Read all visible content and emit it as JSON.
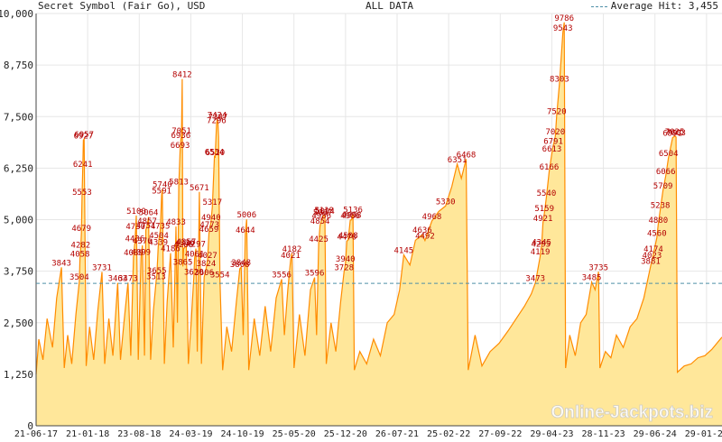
{
  "header": {
    "title": "Secret Symbol (Fair Go), USD",
    "range": "ALL DATA",
    "average_label": "Average Hit: 3,455"
  },
  "watermark": "Online-Jackpots.biz",
  "colors": {
    "line": "#ff8c00",
    "fill": "#ffe79a",
    "grid": "#e6e6e6",
    "labels": "#b30000",
    "average": "#4f90a8"
  },
  "chart_data": {
    "type": "area",
    "title": "Secret Symbol (Fair Go), USD",
    "xlabel": "",
    "ylabel": "",
    "ylim": [
      0,
      10000
    ],
    "yticks": [
      "0",
      "1,250",
      "2,500",
      "3,750",
      "5,000",
      "6,250",
      "7,500",
      "8,750",
      "10,000"
    ],
    "yticks_values": [
      0,
      1250,
      2500,
      3750,
      5000,
      6250,
      7500,
      8750,
      10000
    ],
    "xticks": [
      "21-06-17",
      "21-01-18",
      "23-08-18",
      "24-03-19",
      "24-10-19",
      "25-05-20",
      "25-12-20",
      "26-07-21",
      "25-02-22",
      "27-09-22",
      "29-04-23",
      "28-11-23",
      "29-06-24",
      "29-01-25"
    ],
    "average": 3455,
    "grid": true,
    "hits": [
      {
        "x": 0.037,
        "y": 3843,
        "label": "3843"
      },
      {
        "x": 0.063,
        "y": 3504,
        "label": "3504"
      },
      {
        "x": 0.064,
        "y": 4058,
        "label": "4058"
      },
      {
        "x": 0.065,
        "y": 4282,
        "label": "4282"
      },
      {
        "x": 0.066,
        "y": 4679,
        "label": "4679"
      },
      {
        "x": 0.067,
        "y": 5553,
        "label": "5553"
      },
      {
        "x": 0.068,
        "y": 6241,
        "label": "6241"
      },
      {
        "x": 0.069,
        "y": 6927,
        "label": "6927"
      },
      {
        "x": 0.07,
        "y": 6957,
        "label": "6957"
      },
      {
        "x": 0.096,
        "y": 3731,
        "label": "3731"
      },
      {
        "x": 0.119,
        "y": 3463,
        "label": "3463"
      },
      {
        "x": 0.134,
        "y": 3473,
        "label": "3473"
      },
      {
        "x": 0.142,
        "y": 4089,
        "label": "4089"
      },
      {
        "x": 0.144,
        "y": 4436,
        "label": "4436"
      },
      {
        "x": 0.145,
        "y": 4730,
        "label": "4730"
      },
      {
        "x": 0.146,
        "y": 5100,
        "label": "5100"
      },
      {
        "x": 0.153,
        "y": 4099,
        "label": "4099"
      },
      {
        "x": 0.155,
        "y": 4376,
        "label": "4376"
      },
      {
        "x": 0.16,
        "y": 4751,
        "label": "4751"
      },
      {
        "x": 0.162,
        "y": 4857,
        "label": "4857"
      },
      {
        "x": 0.164,
        "y": 5064,
        "label": "5064"
      },
      {
        "x": 0.175,
        "y": 3513,
        "label": "3513"
      },
      {
        "x": 0.176,
        "y": 3655,
        "label": "3655"
      },
      {
        "x": 0.178,
        "y": 4339,
        "label": "4339"
      },
      {
        "x": 0.179,
        "y": 4504,
        "label": "4504"
      },
      {
        "x": 0.181,
        "y": 4735,
        "label": "4735"
      },
      {
        "x": 0.183,
        "y": 5591,
        "label": "5591"
      },
      {
        "x": 0.184,
        "y": 5740,
        "label": "5740"
      },
      {
        "x": 0.196,
        "y": 4186,
        "label": "4186"
      },
      {
        "x": 0.204,
        "y": 4833,
        "label": "4833"
      },
      {
        "x": 0.208,
        "y": 5813,
        "label": "5813"
      },
      {
        "x": 0.21,
        "y": 6693,
        "label": "6693"
      },
      {
        "x": 0.211,
        "y": 6936,
        "label": "6936"
      },
      {
        "x": 0.212,
        "y": 7051,
        "label": "7051"
      },
      {
        "x": 0.213,
        "y": 8412,
        "label": "8412"
      },
      {
        "x": 0.214,
        "y": 3865,
        "label": "3865"
      },
      {
        "x": 0.215,
        "y": 4286,
        "label": "4286"
      },
      {
        "x": 0.217,
        "y": 4336,
        "label": "4336"
      },
      {
        "x": 0.219,
        "y": 4357,
        "label": "4357"
      },
      {
        "x": 0.23,
        "y": 3620,
        "label": "3620"
      },
      {
        "x": 0.231,
        "y": 4061,
        "label": "4061"
      },
      {
        "x": 0.233,
        "y": 4297,
        "label": "4297"
      },
      {
        "x": 0.238,
        "y": 5671,
        "label": "5671"
      },
      {
        "x": 0.245,
        "y": 3606,
        "label": "3606"
      },
      {
        "x": 0.248,
        "y": 3824,
        "label": "3824"
      },
      {
        "x": 0.25,
        "y": 4027,
        "label": "4027"
      },
      {
        "x": 0.252,
        "y": 4659,
        "label": "4659"
      },
      {
        "x": 0.253,
        "y": 4773,
        "label": "4773"
      },
      {
        "x": 0.255,
        "y": 4940,
        "label": "4940"
      },
      {
        "x": 0.257,
        "y": 5317,
        "label": "5317"
      },
      {
        "x": 0.26,
        "y": 6534,
        "label": "6534"
      },
      {
        "x": 0.261,
        "y": 6520,
        "label": "6520"
      },
      {
        "x": 0.263,
        "y": 7296,
        "label": "7296"
      },
      {
        "x": 0.264,
        "y": 7424,
        "label": "7424"
      },
      {
        "x": 0.265,
        "y": 7387,
        "label": "7387"
      },
      {
        "x": 0.268,
        "y": 3554,
        "label": "3554"
      },
      {
        "x": 0.297,
        "y": 3808,
        "label": "3808"
      },
      {
        "x": 0.299,
        "y": 3848,
        "label": "3848"
      },
      {
        "x": 0.305,
        "y": 4644,
        "label": "4644"
      },
      {
        "x": 0.307,
        "y": 5006,
        "label": "5006"
      },
      {
        "x": 0.358,
        "y": 3556,
        "label": "3556"
      },
      {
        "x": 0.371,
        "y": 4021,
        "label": "4021"
      },
      {
        "x": 0.373,
        "y": 4182,
        "label": "4182"
      },
      {
        "x": 0.406,
        "y": 3596,
        "label": "3596"
      },
      {
        "x": 0.412,
        "y": 4425,
        "label": "4425"
      },
      {
        "x": 0.414,
        "y": 4854,
        "label": "4854"
      },
      {
        "x": 0.416,
        "y": 4986,
        "label": "4986"
      },
      {
        "x": 0.418,
        "y": 5067,
        "label": "5067"
      },
      {
        "x": 0.42,
        "y": 5119,
        "label": "5119"
      },
      {
        "x": 0.421,
        "y": 5094,
        "label": "5094"
      },
      {
        "x": 0.449,
        "y": 3728,
        "label": "3728"
      },
      {
        "x": 0.451,
        "y": 3940,
        "label": "3940"
      },
      {
        "x": 0.453,
        "y": 4476,
        "label": "4476"
      },
      {
        "x": 0.455,
        "y": 4508,
        "label": "4508"
      },
      {
        "x": 0.458,
        "y": 4986,
        "label": "4986"
      },
      {
        "x": 0.46,
        "y": 4998,
        "label": "4998"
      },
      {
        "x": 0.462,
        "y": 5136,
        "label": "5136"
      },
      {
        "x": 0.536,
        "y": 4145,
        "label": "4145"
      },
      {
        "x": 0.563,
        "y": 4636,
        "label": "4636"
      },
      {
        "x": 0.567,
        "y": 4492,
        "label": "4492"
      },
      {
        "x": 0.577,
        "y": 4968,
        "label": "4968"
      },
      {
        "x": 0.597,
        "y": 5330,
        "label": "5330"
      },
      {
        "x": 0.614,
        "y": 6351,
        "label": "6351"
      },
      {
        "x": 0.627,
        "y": 6468,
        "label": "6468"
      },
      {
        "x": 0.728,
        "y": 3473,
        "label": "3473"
      },
      {
        "x": 0.735,
        "y": 4119,
        "label": "4119"
      },
      {
        "x": 0.736,
        "y": 4295,
        "label": "4295"
      },
      {
        "x": 0.737,
        "y": 4345,
        "label": "4345"
      },
      {
        "x": 0.739,
        "y": 4921,
        "label": "4921"
      },
      {
        "x": 0.741,
        "y": 5159,
        "label": "5159"
      },
      {
        "x": 0.744,
        "y": 5540,
        "label": "5540"
      },
      {
        "x": 0.748,
        "y": 6166,
        "label": "6166"
      },
      {
        "x": 0.752,
        "y": 6613,
        "label": "6613"
      },
      {
        "x": 0.754,
        "y": 6791,
        "label": "6791"
      },
      {
        "x": 0.757,
        "y": 7020,
        "label": "7020"
      },
      {
        "x": 0.759,
        "y": 7520,
        "label": "7520"
      },
      {
        "x": 0.763,
        "y": 8303,
        "label": "8303"
      },
      {
        "x": 0.768,
        "y": 9543,
        "label": "9543"
      },
      {
        "x": 0.77,
        "y": 9786,
        "label": "9786"
      },
      {
        "x": 0.81,
        "y": 3485,
        "label": "3485"
      },
      {
        "x": 0.82,
        "y": 3735,
        "label": "3735"
      },
      {
        "x": 0.896,
        "y": 3881,
        "label": "3881"
      },
      {
        "x": 0.898,
        "y": 4023,
        "label": "4023"
      },
      {
        "x": 0.9,
        "y": 4174,
        "label": "4174"
      },
      {
        "x": 0.905,
        "y": 4560,
        "label": "4560"
      },
      {
        "x": 0.907,
        "y": 4880,
        "label": "4880"
      },
      {
        "x": 0.91,
        "y": 5238,
        "label": "5238"
      },
      {
        "x": 0.914,
        "y": 5709,
        "label": "5709"
      },
      {
        "x": 0.918,
        "y": 6066,
        "label": "6066"
      },
      {
        "x": 0.922,
        "y": 6504,
        "label": "6504"
      },
      {
        "x": 0.928,
        "y": 6991,
        "label": "6991"
      },
      {
        "x": 0.931,
        "y": 7025,
        "label": "7025"
      },
      {
        "x": 0.933,
        "y": 7003,
        "label": "7003"
      }
    ],
    "series": [
      {
        "x": [
          0.0,
          0.004,
          0.01,
          0.016,
          0.024,
          0.03,
          0.037,
          0.041,
          0.046,
          0.052,
          0.058,
          0.063,
          0.064,
          0.065,
          0.066,
          0.067,
          0.068,
          0.069,
          0.07,
          0.073,
          0.078,
          0.084,
          0.09,
          0.096,
          0.1,
          0.106,
          0.112,
          0.119,
          0.123,
          0.128,
          0.134,
          0.138,
          0.142,
          0.144,
          0.145,
          0.146,
          0.149,
          0.153,
          0.155,
          0.158,
          0.16,
          0.162,
          0.164,
          0.167,
          0.171,
          0.175,
          0.176,
          0.178,
          0.179,
          0.181,
          0.183,
          0.184,
          0.187,
          0.191,
          0.196,
          0.2,
          0.204,
          0.206,
          0.208,
          0.21,
          0.211,
          0.212,
          0.213,
          0.214,
          0.215,
          0.217,
          0.219,
          0.222,
          0.226,
          0.23,
          0.231,
          0.233,
          0.235,
          0.238,
          0.241,
          0.245,
          0.248,
          0.25,
          0.252,
          0.253,
          0.255,
          0.257,
          0.26,
          0.261,
          0.263,
          0.264,
          0.265,
          0.266,
          0.268,
          0.272,
          0.278,
          0.285,
          0.292,
          0.297,
          0.299,
          0.302,
          0.305,
          0.307,
          0.31,
          0.318,
          0.326,
          0.334,
          0.342,
          0.35,
          0.358,
          0.362,
          0.367,
          0.371,
          0.373,
          0.376,
          0.384,
          0.392,
          0.4,
          0.406,
          0.409,
          0.412,
          0.414,
          0.416,
          0.418,
          0.42,
          0.421,
          0.423,
          0.43,
          0.437,
          0.444,
          0.449,
          0.451,
          0.453,
          0.455,
          0.458,
          0.46,
          0.462,
          0.464,
          0.472,
          0.482,
          0.492,
          0.502,
          0.512,
          0.522,
          0.53,
          0.536,
          0.545,
          0.553,
          0.563,
          0.567,
          0.577,
          0.587,
          0.597,
          0.606,
          0.614,
          0.62,
          0.627,
          0.63,
          0.64,
          0.65,
          0.662,
          0.675,
          0.688,
          0.7,
          0.712,
          0.722,
          0.728,
          0.735,
          0.736,
          0.737,
          0.739,
          0.741,
          0.744,
          0.748,
          0.752,
          0.754,
          0.757,
          0.759,
          0.763,
          0.768,
          0.77,
          0.772,
          0.778,
          0.786,
          0.794,
          0.802,
          0.81,
          0.815,
          0.82,
          0.822,
          0.83,
          0.838,
          0.846,
          0.856,
          0.866,
          0.876,
          0.886,
          0.896,
          0.898,
          0.9,
          0.905,
          0.907,
          0.91,
          0.914,
          0.918,
          0.922,
          0.928,
          0.931,
          0.933,
          0.935,
          0.945,
          0.955,
          0.965,
          0.975,
          0.985,
          0.995,
          1.0
        ],
        "values": [
          1250,
          2100,
          1600,
          2600,
          1900,
          3100,
          3843,
          1400,
          2200,
          1500,
          2700,
          3504,
          4058,
          4282,
          4679,
          5553,
          6241,
          6927,
          6957,
          1450,
          2400,
          1600,
          2800,
          3731,
          1500,
          2600,
          1700,
          3463,
          1600,
          2500,
          3473,
          1700,
          4089,
          4436,
          4730,
          5100,
          1600,
          4099,
          4376,
          1700,
          4751,
          4857,
          5064,
          1600,
          2800,
          3513,
          3655,
          4339,
          4504,
          4735,
          5591,
          5740,
          1500,
          3000,
          4186,
          1900,
          4833,
          2500,
          5813,
          6693,
          6936,
          7051,
          8412,
          3865,
          4286,
          4336,
          4357,
          1500,
          2500,
          3620,
          4061,
          4297,
          1800,
          5671,
          1500,
          3606,
          3824,
          4027,
          4659,
          4773,
          4940,
          5317,
          6534,
          6520,
          7296,
          7424,
          7387,
          7000,
          3554,
          1350,
          2400,
          1800,
          3000,
          3808,
          3848,
          2200,
          4644,
          5006,
          1350,
          2600,
          1700,
          2900,
          1800,
          3100,
          3556,
          2200,
          3300,
          4021,
          4182,
          1400,
          2700,
          1700,
          3300,
          3596,
          2200,
          4425,
          4854,
          4986,
          5067,
          5119,
          5094,
          1500,
          2500,
          1800,
          3000,
          3728,
          3940,
          4476,
          4508,
          4986,
          4998,
          5136,
          1350,
          1800,
          1500,
          2100,
          1700,
          2500,
          2700,
          3300,
          4145,
          3900,
          4500,
          4636,
          4492,
          4968,
          5200,
          5330,
          5800,
          6351,
          6000,
          6468,
          1350,
          2200,
          1450,
          1800,
          2000,
          2300,
          2600,
          2900,
          3200,
          3473,
          4119,
          4295,
          4345,
          4921,
          5159,
          5540,
          6166,
          6613,
          6791,
          7020,
          7520,
          8303,
          9543,
          9786,
          1400,
          2200,
          1700,
          2500,
          2700,
          3485,
          3300,
          3735,
          1400,
          1800,
          1650,
          2200,
          1900,
          2400,
          2600,
          3100,
          3881,
          4023,
          4174,
          4560,
          4880,
          5238,
          5709,
          6066,
          6504,
          6991,
          7025,
          7003,
          1300,
          1450,
          1500,
          1650,
          1700,
          1850,
          2050,
          2150
        ]
      }
    ]
  }
}
